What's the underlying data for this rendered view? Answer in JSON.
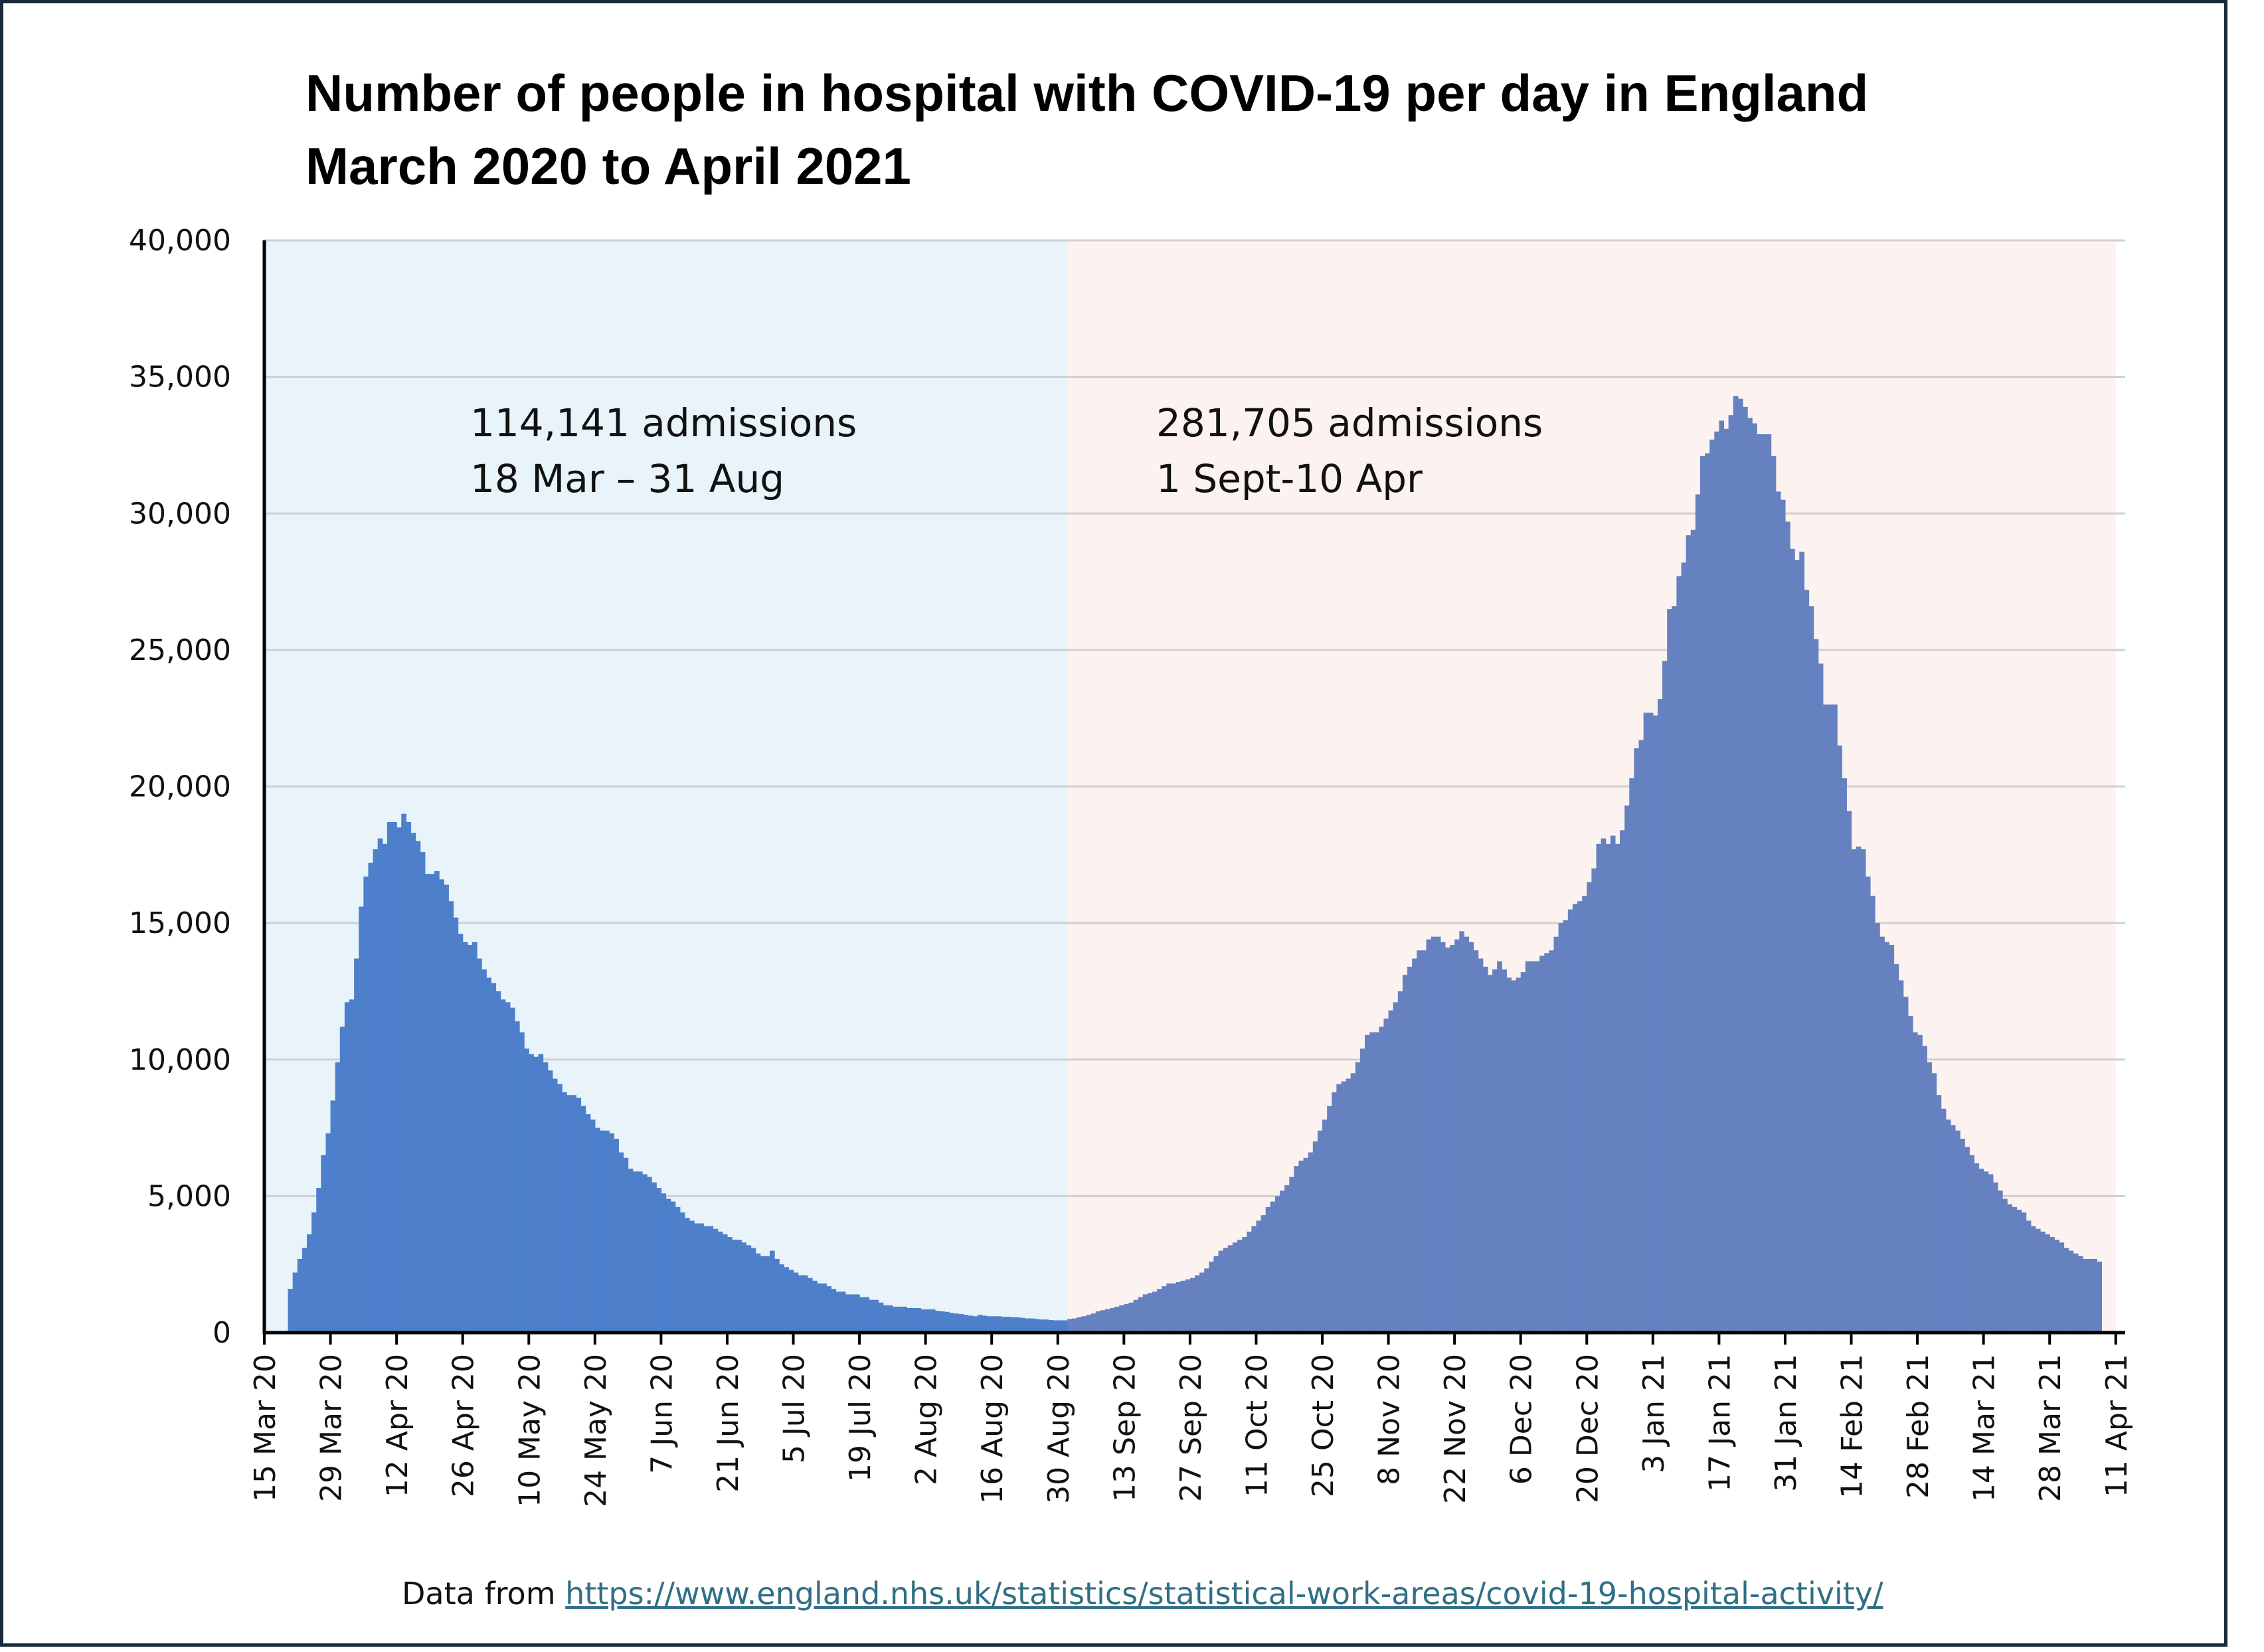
{
  "title_line1": "Number of people in hospital with COVID-19 per day in England",
  "title_line2": "March 2020 to April 2021",
  "source_prefix": "Data from ",
  "source_url": "https://www.england.nhs.uk/statistics/statistical-work-areas/covid-19-hospital-activity/",
  "colors": {
    "wave1_bg": "#e8f3fa",
    "wave2_bg": "#fcf3f1",
    "wave1_bars": "#4d7fcb",
    "wave2_bars": "#6581c0",
    "gridline": "#d0d0d0",
    "axis": "#000000",
    "link": "#2f6f86"
  },
  "chart_data": {
    "type": "bar",
    "title": "Number of people in hospital with COVID-19 per day in England\nMarch 2020 to April 2021",
    "xlabel": "",
    "ylabel": "",
    "ylim": [
      0,
      40000
    ],
    "xlim": [
      "2020-03-15",
      "2021-04-13"
    ],
    "grid": "horizontal",
    "y_ticks": [
      "0",
      "5,000",
      "10,000",
      "15,000",
      "20,000",
      "25,000",
      "30,000",
      "35,000",
      "40,000"
    ],
    "x_ticks": [
      {
        "date": "2020-03-15",
        "label": "15 Mar 20"
      },
      {
        "date": "2020-03-29",
        "label": "29 Mar 20"
      },
      {
        "date": "2020-04-12",
        "label": "12 Apr 20"
      },
      {
        "date": "2020-04-26",
        "label": "26 Apr 20"
      },
      {
        "date": "2020-05-10",
        "label": "10 May 20"
      },
      {
        "date": "2020-05-24",
        "label": "24 May 20"
      },
      {
        "date": "2020-06-07",
        "label": "7 Jun 20"
      },
      {
        "date": "2020-06-21",
        "label": "21 Jun 20"
      },
      {
        "date": "2020-07-05",
        "label": "5 Jul 20"
      },
      {
        "date": "2020-07-19",
        "label": "19 Jul 20"
      },
      {
        "date": "2020-08-02",
        "label": "2 Aug 20"
      },
      {
        "date": "2020-08-16",
        "label": "16 Aug 20"
      },
      {
        "date": "2020-08-30",
        "label": "30 Aug 20"
      },
      {
        "date": "2020-09-13",
        "label": "13 Sep 20"
      },
      {
        "date": "2020-09-27",
        "label": "27 Sep 20"
      },
      {
        "date": "2020-10-11",
        "label": "11 Oct 20"
      },
      {
        "date": "2020-10-25",
        "label": "25 Oct 20"
      },
      {
        "date": "2020-11-08",
        "label": "8 Nov 20"
      },
      {
        "date": "2020-11-22",
        "label": "22 Nov 20"
      },
      {
        "date": "2020-12-06",
        "label": "6 Dec 20"
      },
      {
        "date": "2020-12-20",
        "label": "20 Dec 20"
      },
      {
        "date": "2021-01-03",
        "label": "3 Jan 21"
      },
      {
        "date": "2021-01-17",
        "label": "17 Jan 21"
      },
      {
        "date": "2021-01-31",
        "label": "31 Jan 21"
      },
      {
        "date": "2021-02-14",
        "label": "14 Feb 21"
      },
      {
        "date": "2021-02-28",
        "label": "28 Feb 21"
      },
      {
        "date": "2021-03-14",
        "label": "14 Mar 21"
      },
      {
        "date": "2021-03-28",
        "label": "28 Mar 21"
      },
      {
        "date": "2021-04-11",
        "label": "11 Apr 21"
      }
    ],
    "shaded_regions": [
      {
        "from": "2020-03-15",
        "to": "2020-09-01",
        "color": "#e8f3fa"
      },
      {
        "from": "2020-09-01",
        "to": "2021-04-11",
        "color": "#fcf3f1"
      }
    ],
    "annotations": [
      {
        "lines": [
          "114,141 admissions",
          "18 Mar – 31 Aug"
        ]
      },
      {
        "lines": [
          "281,705 admissions",
          "1 Sept-10 Apr"
        ]
      }
    ],
    "series": [
      {
        "start_date": "2020-03-20",
        "color": "#4d7fcb",
        "values": [
          1600,
          2200,
          2700,
          3100,
          3600,
          4400,
          5300,
          6500,
          7300,
          8500,
          9900,
          11200,
          12100,
          12200,
          13700,
          15600,
          16700,
          17200,
          17700,
          18100,
          17900,
          18700,
          18700,
          18500,
          19000,
          18700,
          18300,
          18000,
          17600,
          16800,
          16800,
          16900,
          16600,
          16400,
          15800,
          15200,
          14600,
          14300,
          14200,
          14300,
          13700,
          13300,
          13000,
          12800,
          12500,
          12200,
          12100,
          11900,
          11400,
          11000,
          10400,
          10200,
          10100,
          10200,
          9900,
          9600,
          9300,
          9100,
          8800,
          8700,
          8700,
          8600,
          8300,
          8000,
          7800,
          7500,
          7400,
          7400,
          7300,
          7100,
          6600,
          6400,
          6000,
          5900,
          5900,
          5800,
          5700,
          5500,
          5300,
          5100,
          4900,
          4800,
          4600,
          4400,
          4200,
          4100,
          4000,
          4000,
          3900,
          3900,
          3800,
          3700,
          3600,
          3500,
          3400,
          3400,
          3300,
          3200,
          3100,
          2900,
          2800,
          2800,
          3000,
          2700,
          2500,
          2400,
          2300,
          2200,
          2100,
          2100,
          2000,
          1900,
          1800,
          1800,
          1700,
          1600,
          1500,
          1500,
          1400,
          1400,
          1400,
          1300,
          1300,
          1200,
          1200,
          1100,
          1000,
          1000,
          950,
          950,
          950,
          900,
          900,
          900,
          850,
          850,
          850,
          800,
          780,
          760,
          720,
          700,
          680,
          650,
          620,
          600,
          650,
          620,
          600,
          600,
          600,
          580,
          580,
          560,
          560,
          540,
          520,
          520,
          500,
          480,
          480,
          460,
          450,
          450,
          450,
          450,
          450,
          450,
          450,
          450,
          480,
          500
        ]
      },
      {
        "start_date": "2020-09-01",
        "color": "#6581c0",
        "values": [
          500,
          520,
          560,
          600,
          650,
          700,
          780,
          820,
          860,
          900,
          950,
          1000,
          1050,
          1100,
          1200,
          1300,
          1400,
          1450,
          1500,
          1600,
          1700,
          1800,
          1800,
          1850,
          1900,
          1950,
          2000,
          2100,
          2200,
          2350,
          2600,
          2800,
          3000,
          3100,
          3200,
          3300,
          3400,
          3500,
          3700,
          3900,
          4100,
          4300,
          4600,
          4800,
          5000,
          5200,
          5400,
          5700,
          6100,
          6300,
          6400,
          6600,
          7000,
          7400,
          7800,
          8300,
          8800,
          9100,
          9200,
          9300,
          9500,
          9900,
          10400,
          10900,
          11000,
          11000,
          11200,
          11500,
          11800,
          12100,
          12500,
          13100,
          13400,
          13700,
          14000,
          14000,
          14400,
          14500,
          14500,
          14300,
          14100,
          14200,
          14400,
          14700,
          14500,
          14300,
          14000,
          13700,
          13400,
          13100,
          13300,
          13600,
          13300,
          13000,
          12900,
          13000,
          13200,
          13600,
          13600,
          13600,
          13800,
          13900,
          14000,
          14500,
          15000,
          15100,
          15500,
          15700,
          15800,
          16000,
          16500,
          17000,
          17900,
          18100,
          17900,
          18200,
          17900,
          18400,
          19300,
          20300,
          21400,
          21700,
          22700,
          22700,
          22600,
          23200,
          24600,
          26500,
          26600,
          27700,
          28200,
          29200,
          29400,
          30700,
          32100,
          32200,
          32700,
          33000,
          33400,
          33100,
          33600,
          34300,
          34200,
          33900,
          33500,
          33300,
          32900,
          32900,
          32900,
          32100,
          30800,
          30500,
          29700,
          28700,
          28300,
          28600,
          27200,
          26600,
          25400,
          24500,
          23000,
          23000,
          23000,
          21500,
          20300,
          19100,
          17700,
          17800,
          17700,
          16700,
          16000,
          15000,
          14500,
          14300,
          14200,
          13500,
          12900,
          12300,
          11600,
          11000,
          10900,
          10500,
          9900,
          9500,
          8700,
          8200,
          7800,
          7600,
          7400,
          7100,
          6800,
          6500,
          6200,
          6000,
          5900,
          5800,
          5500,
          5200,
          4900,
          4700,
          4600,
          4500,
          4400,
          4100,
          3900,
          3800,
          3700,
          3600,
          3500,
          3400,
          3300,
          3100,
          3000,
          2900,
          2800,
          2700,
          2700,
          2700,
          2600
        ]
      }
    ]
  }
}
